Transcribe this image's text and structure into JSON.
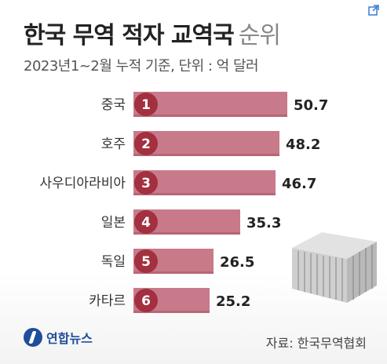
{
  "header": {
    "title_main": "한국 무역 적자 교역국",
    "title_suffix": "순위",
    "subtitle": "2023년1~2월 누적 기준, 단위 : 억 달러"
  },
  "colors": {
    "bar": "#c87a8a",
    "bar_shade": "#b86576",
    "rank_circle": "#a2303f"
  },
  "icons": {
    "external": "external-link-icon",
    "logo": "yonhap-logo-icon",
    "illustration": "shipping-container-icon"
  },
  "chart_data": {
    "type": "bar",
    "orientation": "horizontal",
    "categories": [
      "중국",
      "호주",
      "사우디아라비아",
      "일본",
      "독일",
      "카타르"
    ],
    "ranks": [
      "1",
      "2",
      "3",
      "4",
      "5",
      "6"
    ],
    "values": [
      50.7,
      48.2,
      46.7,
      35.3,
      26.5,
      25.2
    ],
    "value_labels": [
      "50.7",
      "48.2",
      "46.7",
      "35.3",
      "26.5",
      "25.2"
    ],
    "title": "한국 무역 적자 교역국 순위",
    "xlabel": "",
    "ylabel": "",
    "xlim": [
      0,
      50.7
    ],
    "grid": false,
    "legend": "none"
  },
  "footer": {
    "logo_text": "연합뉴스",
    "source": "자료: 한국무역협회"
  }
}
